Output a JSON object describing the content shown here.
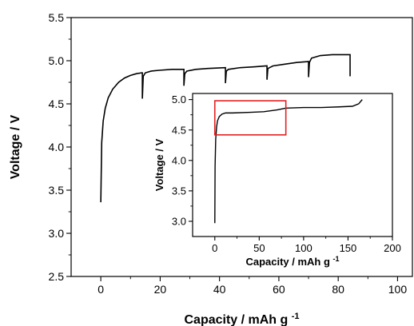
{
  "chart_data": [
    {
      "type": "line",
      "xlabel": "Capacity / mAh g",
      "xlabel_sup": "-1",
      "ylabel": "Voltage / V",
      "xlim": [
        -10,
        105
      ],
      "ylim": [
        2.5,
        5.5
      ],
      "xticks": [
        0,
        20,
        40,
        60,
        80,
        100
      ],
      "yticks": [
        "2.5",
        "3.0",
        "3.5",
        "4.0",
        "4.5",
        "5.0",
        "5.5"
      ],
      "grid": false,
      "series": [
        {
          "x": [
            0,
            0.3,
            0.8,
            1.5,
            2.5,
            4,
            6,
            8,
            10,
            12,
            13.8,
            14,
            14,
            14.3,
            15,
            17,
            20,
            24,
            27.8,
            28,
            28,
            28.3,
            29,
            32,
            36,
            41.8,
            42,
            42,
            42.3,
            43,
            47,
            52,
            55.8,
            56,
            56,
            56.3,
            58,
            62,
            66,
            69.8,
            70,
            70,
            70.3,
            71,
            74,
            78,
            83.8,
            84,
            84
          ],
          "y": [
            3.36,
            4.05,
            4.3,
            4.45,
            4.57,
            4.67,
            4.75,
            4.8,
            4.83,
            4.85,
            4.86,
            4.86,
            4.56,
            4.82,
            4.86,
            4.88,
            4.89,
            4.9,
            4.9,
            4.9,
            4.71,
            4.85,
            4.88,
            4.9,
            4.91,
            4.92,
            4.92,
            4.74,
            4.88,
            4.9,
            4.92,
            4.93,
            4.94,
            4.94,
            4.78,
            4.91,
            4.94,
            4.96,
            4.98,
            4.99,
            4.99,
            4.81,
            4.98,
            5.03,
            5.06,
            5.07,
            5.07,
            5.07,
            4.82
          ]
        }
      ]
    },
    {
      "type": "line",
      "inset": true,
      "xlabel": "Capacity / mAh g",
      "xlabel_sup": "-1",
      "ylabel": "Voltage / V",
      "xlim": [
        -25,
        200
      ],
      "ylim": [
        2.75,
        5.1
      ],
      "xticks": [
        0,
        50,
        100,
        150,
        200
      ],
      "yticks": [
        "3.0",
        "3.5",
        "4.0",
        "4.5",
        "5.0"
      ],
      "grid": false,
      "highlight_box": {
        "x0": 0,
        "x1": 80,
        "y0": 4.42,
        "y1": 4.98
      },
      "series": [
        {
          "x": [
            0,
            0.3,
            1,
            2,
            3,
            5,
            8,
            12,
            20,
            40,
            55,
            70,
            80,
            100,
            120,
            140,
            155,
            162,
            166
          ],
          "y": [
            2.97,
            3.9,
            4.35,
            4.55,
            4.65,
            4.72,
            4.76,
            4.78,
            4.78,
            4.79,
            4.8,
            4.83,
            4.86,
            4.87,
            4.87,
            4.88,
            4.89,
            4.93,
            5.0
          ]
        }
      ]
    }
  ]
}
